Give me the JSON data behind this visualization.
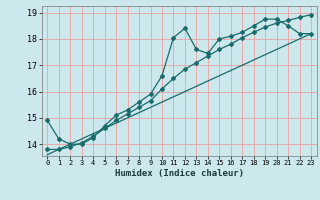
{
  "title": "",
  "xlabel": "Humidex (Indice chaleur)",
  "ylabel": "",
  "background_color": "#cce8ec",
  "grid_color": "#e8aaaa",
  "line_color": "#1a6b6b",
  "x_ticks": [
    0,
    1,
    2,
    3,
    4,
    5,
    6,
    7,
    8,
    9,
    10,
    11,
    12,
    13,
    14,
    15,
    16,
    17,
    18,
    19,
    20,
    21,
    22,
    23
  ],
  "y_ticks": [
    14,
    15,
    16,
    17,
    18,
    19
  ],
  "ylim": [
    13.55,
    19.25
  ],
  "xlim": [
    -0.5,
    23.5
  ],
  "line1_x": [
    0,
    1,
    2,
    3,
    4,
    5,
    6,
    7,
    8,
    9,
    10,
    11,
    12,
    13,
    14,
    15,
    16,
    17,
    18,
    19,
    20,
    21,
    22,
    23
  ],
  "line1_y": [
    14.9,
    14.2,
    14.0,
    14.0,
    14.25,
    14.7,
    15.1,
    15.3,
    15.6,
    15.9,
    16.6,
    18.05,
    18.4,
    17.6,
    17.45,
    18.0,
    18.1,
    18.25,
    18.5,
    18.75,
    18.75,
    18.5,
    18.2,
    18.2
  ],
  "line2_x": [
    0,
    1,
    2,
    3,
    4,
    5,
    6,
    7,
    8,
    9,
    10,
    11,
    12,
    13,
    14,
    15,
    16,
    17,
    18,
    19,
    20,
    21,
    22,
    23
  ],
  "line2_y": [
    13.8,
    13.8,
    13.9,
    14.05,
    14.3,
    14.6,
    14.9,
    15.15,
    15.4,
    15.65,
    16.1,
    16.5,
    16.85,
    17.1,
    17.35,
    17.6,
    17.8,
    18.05,
    18.25,
    18.45,
    18.6,
    18.7,
    18.82,
    18.92
  ],
  "line3_x": [
    0,
    23
  ],
  "line3_y": [
    13.6,
    18.2
  ]
}
